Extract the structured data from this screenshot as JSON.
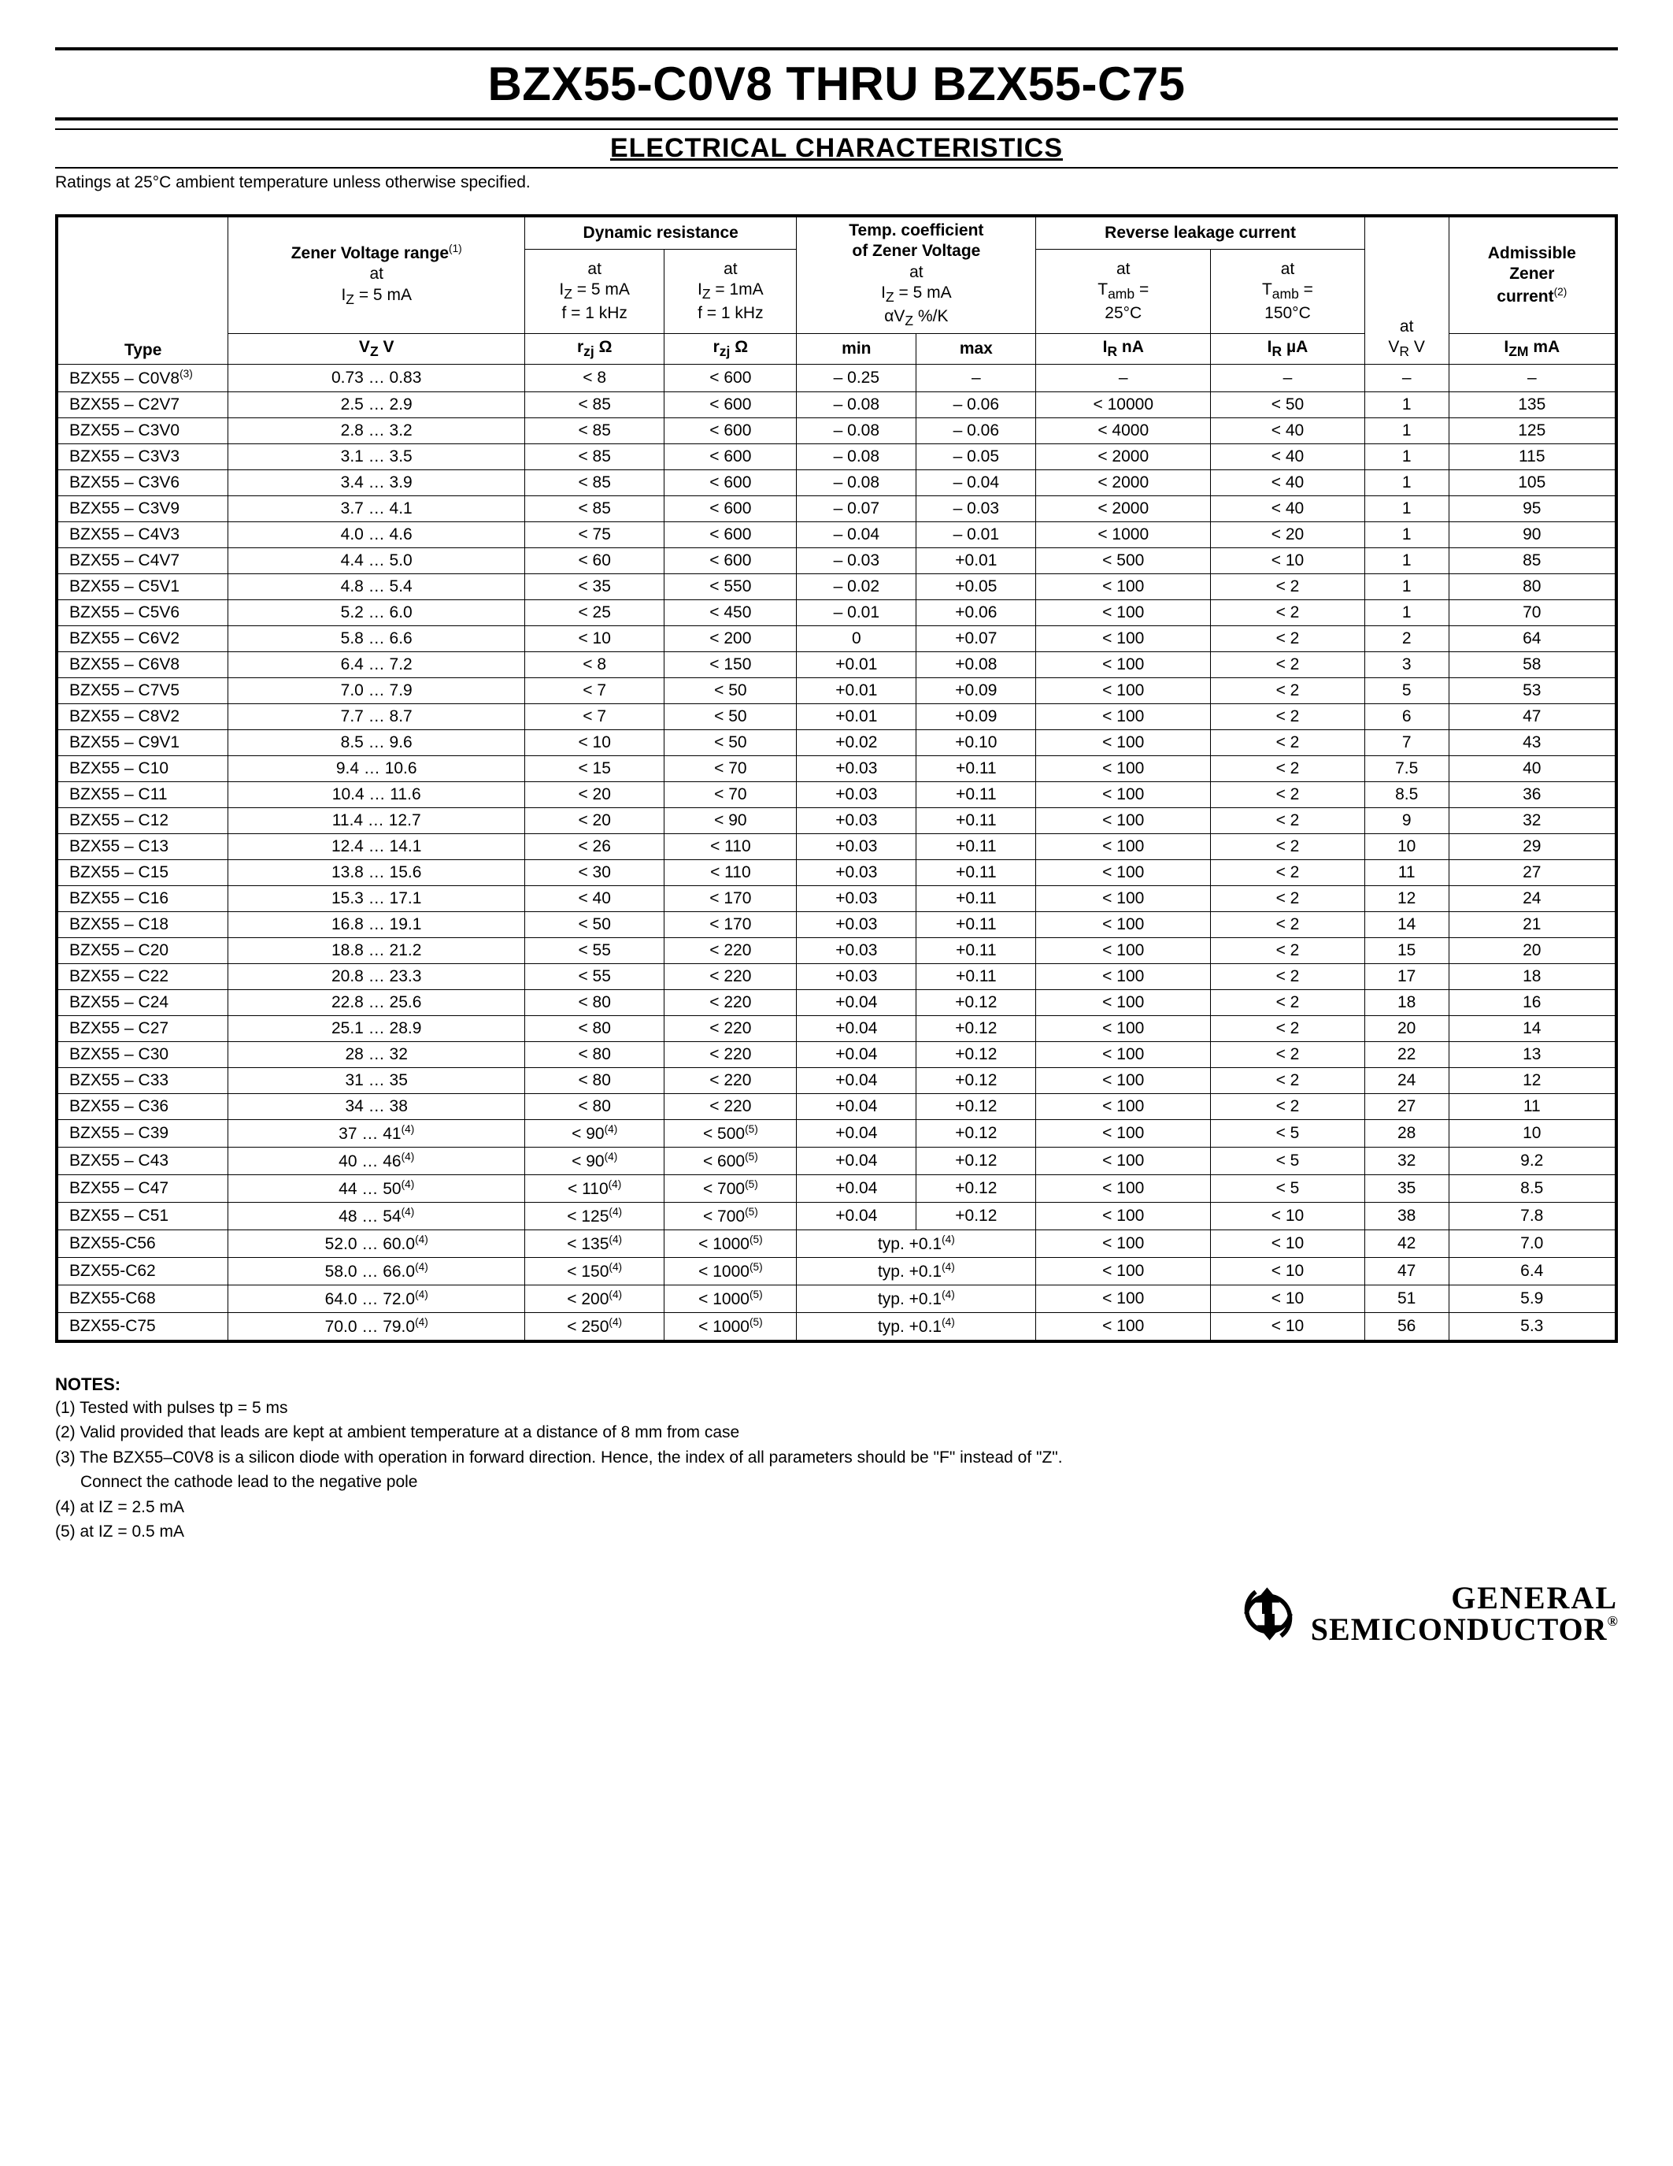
{
  "title": "BZX55-C0V8 THRU BZX55-C75",
  "subtitle": "ELECTRICAL CHARACTERISTICS",
  "ratings_note": "Ratings at 25°C ambient temperature unless otherwise specified.",
  "headers": {
    "type": "Type",
    "zener_voltage_title": "Zener Voltage range",
    "zener_voltage_sup": "(1)",
    "zener_voltage_cond": "at\nIZ = 5 mA",
    "zener_voltage_unit": "VZ V",
    "dyn_res_title": "Dynamic resistance",
    "dyn_res_5ma": "at\nIZ = 5 mA\nf = 1 kHz",
    "dyn_res_1ma": "at\nIZ = 1mA\nf = 1 kHz",
    "dyn_res_unit": "rzj Ω",
    "temp_coef_title": "Temp. coefficient\nof Zener Voltage",
    "temp_coef_cond": "at\nIZ = 5 mA\nαVz %/K",
    "temp_min": "min",
    "temp_max": "max",
    "rev_leak_title": "Reverse leakage current",
    "rev_25": "at\nTamb =\n25°C",
    "rev_150": "at\nTamb =\n150°C",
    "rev_25_unit": "IR nA",
    "rev_150_unit": "IR µA",
    "vr": "at\nVR V",
    "izm_title": "Admissible\nZener\ncurrent",
    "izm_sup": "(2)",
    "izm_unit": "IZM mA"
  },
  "rows": [
    {
      "type": "BZX55 – C0V8",
      "sup_t": "(3)",
      "vz": "0.73 … 0.83",
      "r5": "< 8",
      "r1": "< 600",
      "tmin": "– 0.25",
      "tmax": "–",
      "ir25": "–",
      "ir150": "–",
      "vr": "–",
      "izm": "–"
    },
    {
      "type": "BZX55 – C2V7",
      "vz": "2.5 … 2.9",
      "r5": "< 85",
      "r1": "< 600",
      "tmin": "– 0.08",
      "tmax": "– 0.06",
      "ir25": "< 10000",
      "ir150": "< 50",
      "vr": "1",
      "izm": "135"
    },
    {
      "type": "BZX55 – C3V0",
      "vz": "2.8 … 3.2",
      "r5": "< 85",
      "r1": "< 600",
      "tmin": "– 0.08",
      "tmax": "– 0.06",
      "ir25": "< 4000",
      "ir150": "< 40",
      "vr": "1",
      "izm": "125"
    },
    {
      "type": "BZX55 – C3V3",
      "vz": "3.1 … 3.5",
      "r5": "< 85",
      "r1": "< 600",
      "tmin": "– 0.08",
      "tmax": "– 0.05",
      "ir25": "< 2000",
      "ir150": "< 40",
      "vr": "1",
      "izm": "115"
    },
    {
      "type": "BZX55 – C3V6",
      "vz": "3.4 … 3.9",
      "r5": "< 85",
      "r1": "< 600",
      "tmin": "– 0.08",
      "tmax": "– 0.04",
      "ir25": "< 2000",
      "ir150": "< 40",
      "vr": "1",
      "izm": "105"
    },
    {
      "type": "BZX55 – C3V9",
      "vz": "3.7 … 4.1",
      "r5": "< 85",
      "r1": "< 600",
      "tmin": "– 0.07",
      "tmax": "– 0.03",
      "ir25": "< 2000",
      "ir150": "< 40",
      "vr": "1",
      "izm": "95"
    },
    {
      "type": "BZX55 – C4V3",
      "vz": "4.0 … 4.6",
      "r5": "< 75",
      "r1": "< 600",
      "tmin": "– 0.04",
      "tmax": "– 0.01",
      "ir25": "< 1000",
      "ir150": "< 20",
      "vr": "1",
      "izm": "90"
    },
    {
      "type": "BZX55 – C4V7",
      "vz": "4.4 … 5.0",
      "r5": "< 60",
      "r1": "< 600",
      "tmin": "– 0.03",
      "tmax": "+0.01",
      "ir25": "< 500",
      "ir150": "< 10",
      "vr": "1",
      "izm": "85"
    },
    {
      "type": "BZX55 – C5V1",
      "vz": "4.8 … 5.4",
      "r5": "< 35",
      "r1": "< 550",
      "tmin": "– 0.02",
      "tmax": "+0.05",
      "ir25": "< 100",
      "ir150": "< 2",
      "vr": "1",
      "izm": "80"
    },
    {
      "type": "BZX55 – C5V6",
      "vz": "5.2 … 6.0",
      "r5": "< 25",
      "r1": "< 450",
      "tmin": "– 0.01",
      "tmax": "+0.06",
      "ir25": "< 100",
      "ir150": "< 2",
      "vr": "1",
      "izm": "70"
    },
    {
      "type": "BZX55 – C6V2",
      "vz": "5.8 … 6.6",
      "r5": "< 10",
      "r1": "< 200",
      "tmin": "0",
      "tmax": "+0.07",
      "ir25": "< 100",
      "ir150": "< 2",
      "vr": "2",
      "izm": "64"
    },
    {
      "type": "BZX55 – C6V8",
      "vz": "6.4 … 7.2",
      "r5": "< 8",
      "r1": "< 150",
      "tmin": "+0.01",
      "tmax": "+0.08",
      "ir25": "< 100",
      "ir150": "< 2",
      "vr": "3",
      "izm": "58"
    },
    {
      "type": "BZX55 – C7V5",
      "vz": "7.0 … 7.9",
      "r5": "< 7",
      "r1": "< 50",
      "tmin": "+0.01",
      "tmax": "+0.09",
      "ir25": "< 100",
      "ir150": "< 2",
      "vr": "5",
      "izm": "53"
    },
    {
      "type": "BZX55 – C8V2",
      "vz": "7.7 … 8.7",
      "r5": "< 7",
      "r1": "< 50",
      "tmin": "+0.01",
      "tmax": "+0.09",
      "ir25": "< 100",
      "ir150": "< 2",
      "vr": "6",
      "izm": "47"
    },
    {
      "type": "BZX55 – C9V1",
      "vz": "8.5 … 9.6",
      "r5": "< 10",
      "r1": "< 50",
      "tmin": "+0.02",
      "tmax": "+0.10",
      "ir25": "< 100",
      "ir150": "< 2",
      "vr": "7",
      "izm": "43"
    },
    {
      "type": "BZX55 – C10",
      "vz": "9.4 … 10.6",
      "r5": "< 15",
      "r1": "< 70",
      "tmin": "+0.03",
      "tmax": "+0.11",
      "ir25": "< 100",
      "ir150": "< 2",
      "vr": "7.5",
      "izm": "40"
    },
    {
      "type": "BZX55 – C11",
      "vz": "10.4 … 11.6",
      "r5": "< 20",
      "r1": "< 70",
      "tmin": "+0.03",
      "tmax": "+0.11",
      "ir25": "< 100",
      "ir150": "< 2",
      "vr": "8.5",
      "izm": "36"
    },
    {
      "type": "BZX55 – C12",
      "vz": "11.4 … 12.7",
      "r5": "< 20",
      "r1": "< 90",
      "tmin": "+0.03",
      "tmax": "+0.11",
      "ir25": "< 100",
      "ir150": "< 2",
      "vr": "9",
      "izm": "32"
    },
    {
      "type": "BZX55 – C13",
      "vz": "12.4 … 14.1",
      "r5": "< 26",
      "r1": "< 110",
      "tmin": "+0.03",
      "tmax": "+0.11",
      "ir25": "< 100",
      "ir150": "< 2",
      "vr": "10",
      "izm": "29"
    },
    {
      "type": "BZX55 – C15",
      "vz": "13.8 … 15.6",
      "r5": "< 30",
      "r1": "< 110",
      "tmin": "+0.03",
      "tmax": "+0.11",
      "ir25": "< 100",
      "ir150": "< 2",
      "vr": "11",
      "izm": "27"
    },
    {
      "type": "BZX55 – C16",
      "vz": "15.3 … 17.1",
      "r5": "< 40",
      "r1": "< 170",
      "tmin": "+0.03",
      "tmax": "+0.11",
      "ir25": "< 100",
      "ir150": "< 2",
      "vr": "12",
      "izm": "24"
    },
    {
      "type": "BZX55 – C18",
      "vz": "16.8 … 19.1",
      "r5": "< 50",
      "r1": "< 170",
      "tmin": "+0.03",
      "tmax": "+0.11",
      "ir25": "< 100",
      "ir150": "< 2",
      "vr": "14",
      "izm": "21"
    },
    {
      "type": "BZX55 – C20",
      "vz": "18.8 … 21.2",
      "r5": "< 55",
      "r1": "< 220",
      "tmin": "+0.03",
      "tmax": "+0.11",
      "ir25": "< 100",
      "ir150": "< 2",
      "vr": "15",
      "izm": "20"
    },
    {
      "type": "BZX55 – C22",
      "vz": "20.8 … 23.3",
      "r5": "< 55",
      "r1": "< 220",
      "tmin": "+0.03",
      "tmax": "+0.11",
      "ir25": "< 100",
      "ir150": "< 2",
      "vr": "17",
      "izm": "18"
    },
    {
      "type": "BZX55 – C24",
      "vz": "22.8 … 25.6",
      "r5": "< 80",
      "r1": "< 220",
      "tmin": "+0.04",
      "tmax": "+0.12",
      "ir25": "< 100",
      "ir150": "< 2",
      "vr": "18",
      "izm": "16"
    },
    {
      "type": "BZX55 – C27",
      "vz": "25.1 … 28.9",
      "r5": "< 80",
      "r1": "< 220",
      "tmin": "+0.04",
      "tmax": "+0.12",
      "ir25": "< 100",
      "ir150": "< 2",
      "vr": "20",
      "izm": "14"
    },
    {
      "type": "BZX55 – C30",
      "vz": "28 … 32",
      "r5": "< 80",
      "r1": "< 220",
      "tmin": "+0.04",
      "tmax": "+0.12",
      "ir25": "< 100",
      "ir150": "< 2",
      "vr": "22",
      "izm": "13"
    },
    {
      "type": "BZX55 – C33",
      "vz": "31 … 35",
      "r5": "< 80",
      "r1": "< 220",
      "tmin": "+0.04",
      "tmax": "+0.12",
      "ir25": "< 100",
      "ir150": "< 2",
      "vr": "24",
      "izm": "12"
    },
    {
      "type": "BZX55 – C36",
      "vz": "34 … 38",
      "r5": "< 80",
      "r1": "< 220",
      "tmin": "+0.04",
      "tmax": "+0.12",
      "ir25": "< 100",
      "ir150": "< 2",
      "vr": "27",
      "izm": "11"
    },
    {
      "type": "BZX55 – C39",
      "vz": "37 … 41",
      "sup_vz": "(4)",
      "r5": "< 90",
      "sup_r5": "(4)",
      "r1": "< 500",
      "sup_r1": "(5)",
      "tmin": "+0.04",
      "tmax": "+0.12",
      "ir25": "< 100",
      "ir150": "< 5",
      "vr": "28",
      "izm": "10"
    },
    {
      "type": "BZX55 – C43",
      "vz": "40 … 46",
      "sup_vz": "(4)",
      "r5": "< 90",
      "sup_r5": "(4)",
      "r1": "< 600",
      "sup_r1": "(5)",
      "tmin": "+0.04",
      "tmax": "+0.12",
      "ir25": "< 100",
      "ir150": "< 5",
      "vr": "32",
      "izm": "9.2"
    },
    {
      "type": "BZX55 – C47",
      "vz": "44 … 50",
      "sup_vz": "(4)",
      "r5": "< 110",
      "sup_r5": "(4)",
      "r1": "< 700",
      "sup_r1": "(5)",
      "tmin": "+0.04",
      "tmax": "+0.12",
      "ir25": "< 100",
      "ir150": "< 5",
      "vr": "35",
      "izm": "8.5"
    },
    {
      "type": "BZX55 – C51",
      "vz": "48 … 54",
      "sup_vz": "(4)",
      "r5": "< 125",
      "sup_r5": "(4)",
      "r1": "< 700",
      "sup_r1": "(5)",
      "tmin": "+0.04",
      "tmax": "+0.12",
      "ir25": "< 100",
      "ir150": "< 10",
      "vr": "38",
      "izm": "7.8"
    },
    {
      "type": "BZX55-C56",
      "vz": "52.0 … 60.0",
      "sup_vz": "(4)",
      "r5": "< 135",
      "sup_r5": "(4)",
      "r1": "< 1000",
      "sup_r1": "(5)",
      "typ": "typ. +0.1",
      "sup_typ": "(4)",
      "ir25": "< 100",
      "ir150": "< 10",
      "vr": "42",
      "izm": "7.0"
    },
    {
      "type": "BZX55-C62",
      "vz": "58.0 … 66.0",
      "sup_vz": "(4)",
      "r5": "< 150",
      "sup_r5": "(4)",
      "r1": "< 1000",
      "sup_r1": "(5)",
      "typ": "typ. +0.1",
      "sup_typ": "(4)",
      "ir25": "< 100",
      "ir150": "< 10",
      "vr": "47",
      "izm": "6.4"
    },
    {
      "type": "BZX55-C68",
      "vz": "64.0 … 72.0",
      "sup_vz": "(4)",
      "r5": "< 200",
      "sup_r5": "(4)",
      "r1": "< 1000",
      "sup_r1": "(5)",
      "typ": "typ. +0.1",
      "sup_typ": "(4)",
      "ir25": "< 100",
      "ir150": "< 10",
      "vr": "51",
      "izm": "5.9"
    },
    {
      "type": "BZX55-C75",
      "vz": "70.0 … 79.0",
      "sup_vz": "(4)",
      "r5": "< 250",
      "sup_r5": "(4)",
      "r1": "< 1000",
      "sup_r1": "(5)",
      "typ": "typ. +0.1",
      "sup_typ": "(4)",
      "ir25": "< 100",
      "ir150": "< 10",
      "vr": "56",
      "izm": "5.3"
    }
  ],
  "notes": {
    "title": "NOTES:",
    "n1": "(1) Tested with pulses tp = 5 ms",
    "n2": "(2) Valid provided that leads are kept at ambient temperature at a distance of 8 mm from case",
    "n3": "(3) The BZX55–C0V8 is a silicon diode with operation in forward direction. Hence, the index of all parameters should be \"F\" instead of \"Z\".",
    "n3b": "Connect the cathode lead to the negative pole",
    "n4": "(4) at IZ = 2.5 mA",
    "n5": "(5) at IZ = 0.5 mA"
  },
  "logo": {
    "line1": "GENERAL",
    "line2": "SEMICONDUCTOR",
    "reg": "®"
  }
}
